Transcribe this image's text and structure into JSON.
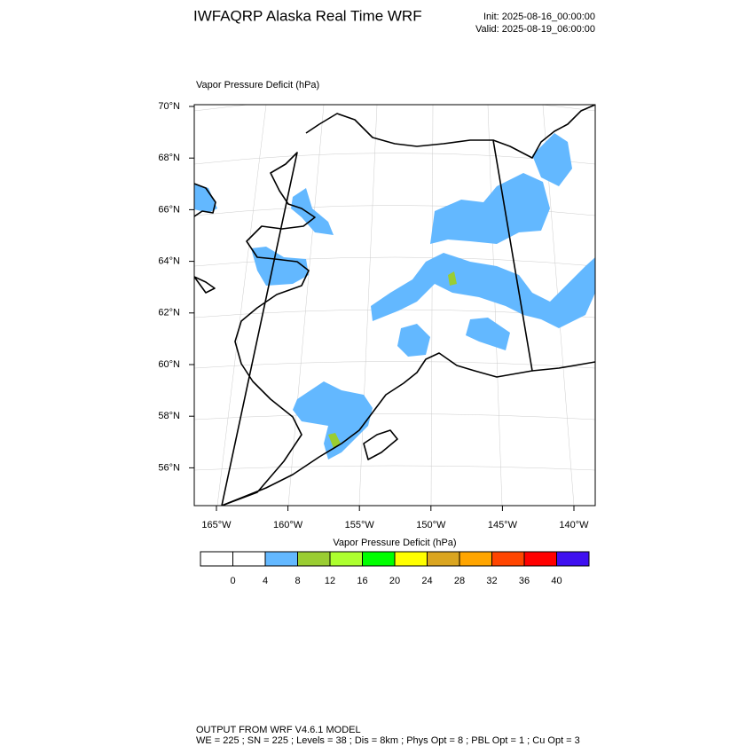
{
  "header": {
    "title": "IWFAQRP Alaska Real Time WRF",
    "init": "Init: 2025-08-16_00:00:00",
    "valid": "Valid: 2025-08-19_06:00:00"
  },
  "map": {
    "title": "Vapor Pressure Deficit   (hPa)",
    "lat_labels": [
      "70°N",
      "68°N",
      "66°N",
      "64°N",
      "62°N",
      "60°N",
      "58°N",
      "56°N"
    ],
    "lon_labels": [
      "165°W",
      "160°W",
      "155°W",
      "150°W",
      "145°W",
      "140°W"
    ]
  },
  "colorbar": {
    "title": "Vapor Pressure Deficit  (hPa)",
    "colors": [
      "#ffffff",
      "#ffffff",
      "#63b8ff",
      "#9acd32",
      "#adff2f",
      "#00ff00",
      "#ffff00",
      "#daa520",
      "#ffa500",
      "#ff4500",
      "#ff0000",
      "#3f10f0"
    ],
    "labels": [
      0,
      4,
      8,
      12,
      16,
      20,
      24,
      28,
      32,
      36,
      40
    ]
  },
  "footer": {
    "line1": "OUTPUT FROM WRF V4.6.1 MODEL",
    "line2": "WE = 225 ; SN = 225 ; Levels = 38 ; Dis = 8km ; Phys Opt = 8 ; PBL Opt = 1 ; Cu Opt = 3"
  }
}
